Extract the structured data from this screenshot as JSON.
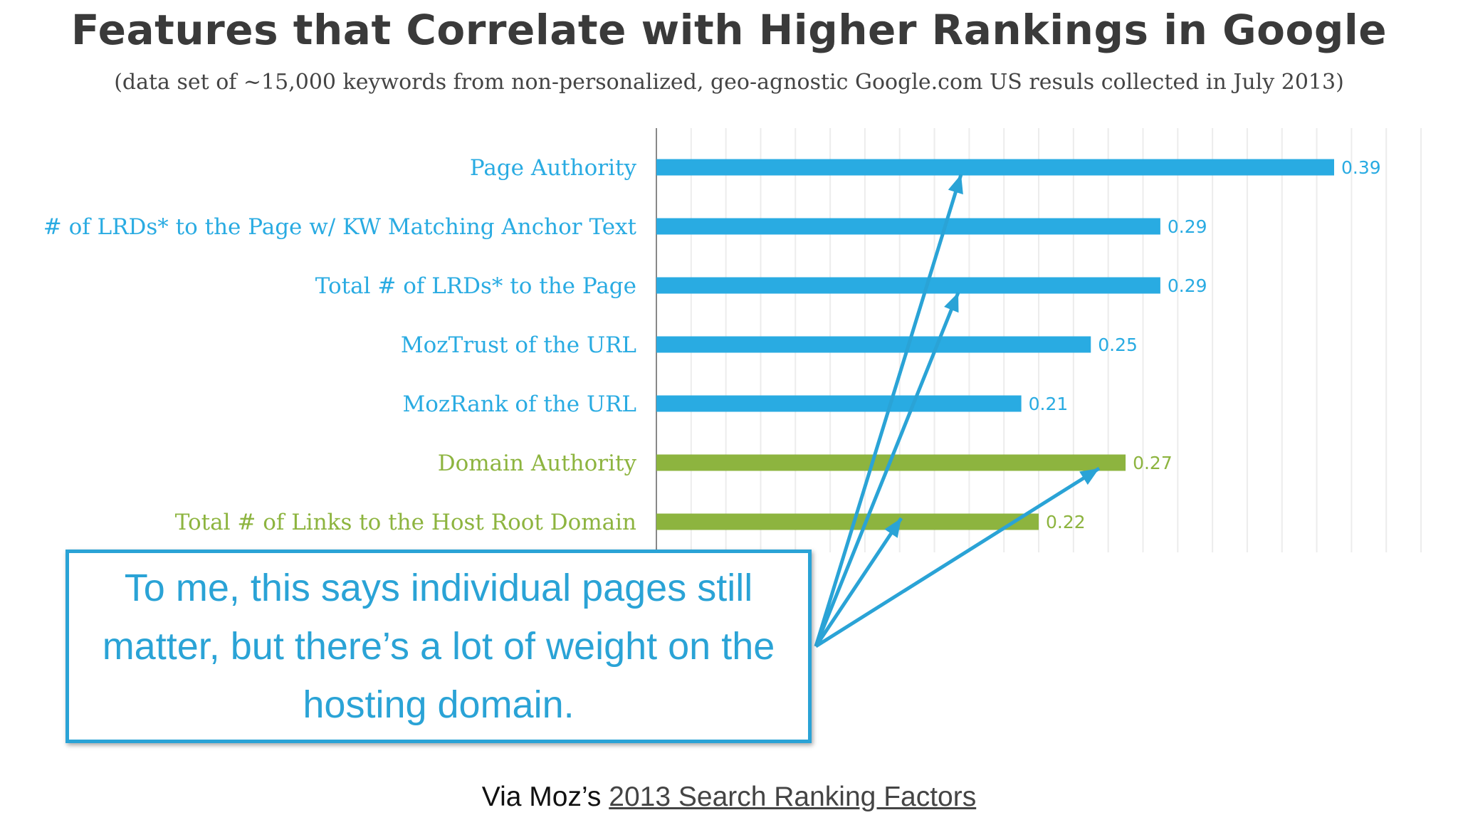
{
  "title": "Features that Correlate with Higher Rankings in Google",
  "subtitle": "(data set of ~15,000 keywords from non-personalized, geo-agnostic Google.com US resuls collected in July 2013)",
  "chart_data": {
    "type": "bar",
    "orientation": "horizontal",
    "categories": [
      "Page Authority",
      "# of LRDs* to the Page w/ KW Matching Anchor Text",
      "Total # of LRDs* to the Page",
      "MozTrust of the URL",
      "MozRank of the URL",
      "Domain Authority",
      "Total # of Links to the Host Root Domain"
    ],
    "values": [
      0.39,
      0.29,
      0.29,
      0.25,
      0.21,
      0.27,
      0.22
    ],
    "value_labels": [
      "0.39",
      "0.29",
      "0.29",
      "0.25",
      "0.21",
      "0.27",
      "0.22"
    ],
    "colors": [
      "#29abe2",
      "#29abe2",
      "#29abe2",
      "#29abe2",
      "#29abe2",
      "#8db43f",
      "#8db43f"
    ],
    "xlim": [
      0,
      0.45
    ],
    "grid": true
  },
  "callout": {
    "text": "To me, this says individual pages still matter, but there’s a lot of weight on the hosting domain."
  },
  "source": {
    "prefix": "Via Moz’s ",
    "link_text": "2013 Search Ranking Factors"
  }
}
